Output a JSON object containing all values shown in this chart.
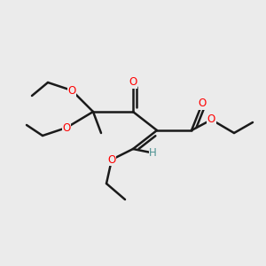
{
  "bg_color": "#ebebeb",
  "bond_color": "#1a1a1a",
  "oxygen_color": "#ff0000",
  "hydrogen_color": "#4a9090",
  "lw": 1.8,
  "figsize": [
    3.0,
    3.0
  ],
  "dpi": 100,
  "xlim": [
    0,
    10
  ],
  "ylim": [
    0,
    10
  ],
  "double_sep": 0.13
}
